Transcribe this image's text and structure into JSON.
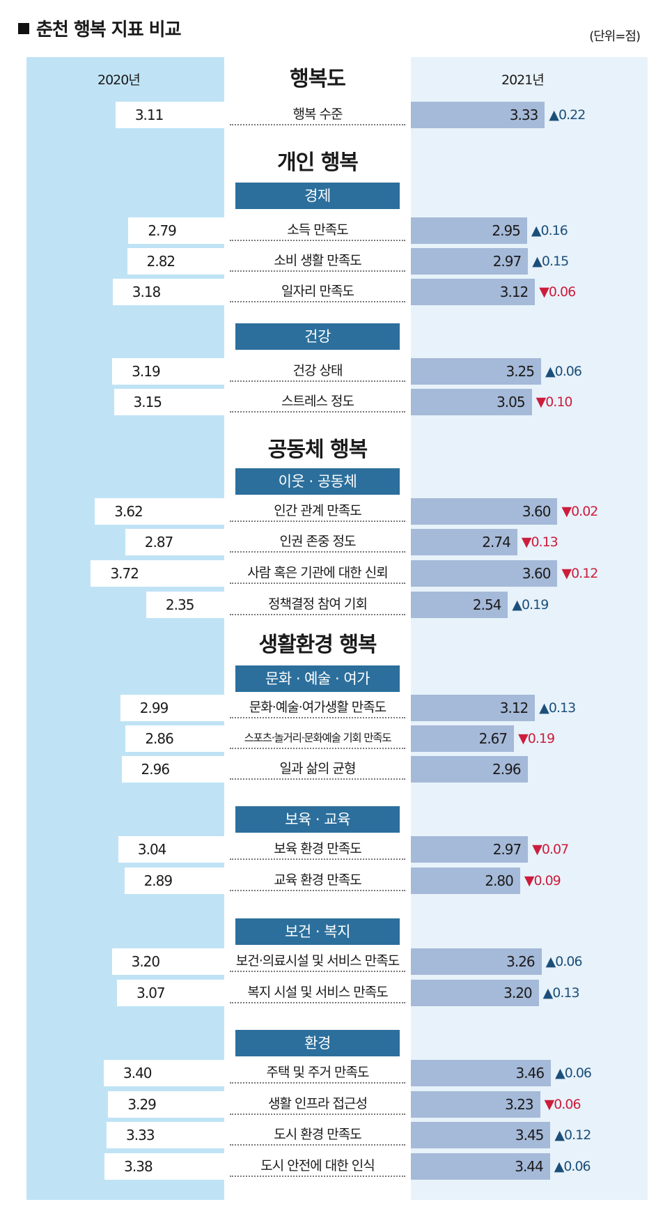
{
  "title": "춘천 행복 지표 비교",
  "unit": "(단위=점)",
  "colors": {
    "panel_2020": "#bfe3f5",
    "panel_2021": "#e8f2fa",
    "bar_2021": "#a5b9d8",
    "group_box": "#2c6f9c",
    "up": "#1b4f7a",
    "down": "#cc1d3c"
  },
  "chart_data": {
    "type": "bar",
    "title": "춘천 행복 지표 비교",
    "unit": "(단위=점)",
    "series_names": [
      "2020년",
      "2021년"
    ],
    "sections": [
      {
        "heading": "행복도",
        "groups": [
          {
            "name": "",
            "items": [
              {
                "label": "행복 수준",
                "v2020": "3.11",
                "v2021": "3.33",
                "dir": "up",
                "delta": "0.22"
              }
            ]
          }
        ]
      },
      {
        "heading": "개인 행복",
        "groups": [
          {
            "name": "경제",
            "items": [
              {
                "label": "소득 만족도",
                "v2020": "2.79",
                "v2021": "2.95",
                "dir": "up",
                "delta": "0.16"
              },
              {
                "label": "소비 생활 만족도",
                "v2020": "2.82",
                "v2021": "2.97",
                "dir": "up",
                "delta": "0.15"
              },
              {
                "label": "일자리 만족도",
                "v2020": "3.18",
                "v2021": "3.12",
                "dir": "down",
                "delta": "0.06"
              }
            ]
          },
          {
            "name": "건강",
            "items": [
              {
                "label": "건강 상태",
                "v2020": "3.19",
                "v2021": "3.25",
                "dir": "up",
                "delta": "0.06"
              },
              {
                "label": "스트레스 정도",
                "v2020": "3.15",
                "v2021": "3.05",
                "dir": "down",
                "delta": "0.10"
              }
            ]
          }
        ]
      },
      {
        "heading": "공동체 행복",
        "groups": [
          {
            "name": "이웃 · 공동체",
            "items": [
              {
                "label": "인간 관계 만족도",
                "v2020": "3.62",
                "v2021": "3.60",
                "dir": "down",
                "delta": "0.02"
              },
              {
                "label": "인권 존중 정도",
                "v2020": "2.87",
                "v2021": "2.74",
                "dir": "down",
                "delta": "0.13"
              },
              {
                "label": "사람 혹은 기관에 대한 신뢰",
                "v2020": "3.72",
                "v2021": "3.60",
                "dir": "down",
                "delta": "0.12"
              },
              {
                "label": "정책결정 참여 기회",
                "v2020": "2.35",
                "v2021": "2.54",
                "dir": "up",
                "delta": "0.19"
              }
            ]
          }
        ]
      },
      {
        "heading": "생활환경 행복",
        "groups": [
          {
            "name": "문화 · 예술 · 여가",
            "items": [
              {
                "label": "문화·예술·여가생활 만족도",
                "v2020": "2.99",
                "v2021": "3.12",
                "dir": "up",
                "delta": "0.13"
              },
              {
                "label": "스포츠·놀거리·문화예술 기회 만족도",
                "v2020": "2.86",
                "v2021": "2.67",
                "dir": "down",
                "delta": "0.19"
              },
              {
                "label": "일과 삶의 균형",
                "v2020": "2.96",
                "v2021": "2.96",
                "dir": "none",
                "delta": ""
              }
            ]
          },
          {
            "name": "보육 · 교육",
            "items": [
              {
                "label": "보육 환경 만족도",
                "v2020": "3.04",
                "v2021": "2.97",
                "dir": "down",
                "delta": "0.07"
              },
              {
                "label": "교육 환경 만족도",
                "v2020": "2.89",
                "v2021": "2.80",
                "dir": "down",
                "delta": "0.09"
              }
            ]
          },
          {
            "name": "보건 · 복지",
            "items": [
              {
                "label": "보건·의료시설 및 서비스 만족도",
                "v2020": "3.20",
                "v2021": "3.26",
                "dir": "up",
                "delta": "0.06"
              },
              {
                "label": "복지 시설 및 서비스 만족도",
                "v2020": "3.07",
                "v2021": "3.20",
                "dir": "up",
                "delta": "0.13"
              }
            ]
          },
          {
            "name": "환경",
            "items": [
              {
                "label": "주택 및 주거 만족도",
                "v2020": "3.40",
                "v2021": "3.46",
                "dir": "up",
                "delta": "0.06"
              },
              {
                "label": "생활 인프라 접근성",
                "v2020": "3.29",
                "v2021": "3.23",
                "dir": "down",
                "delta": "0.06"
              },
              {
                "label": "도시 환경 만족도",
                "v2020": "3.33",
                "v2021": "3.45",
                "dir": "up",
                "delta": "0.12"
              },
              {
                "label": "도시 안전에 대한 인식",
                "v2020": "3.38",
                "v2021": "3.44",
                "dir": "up",
                "delta": "0.06"
              }
            ]
          }
        ]
      }
    ]
  }
}
